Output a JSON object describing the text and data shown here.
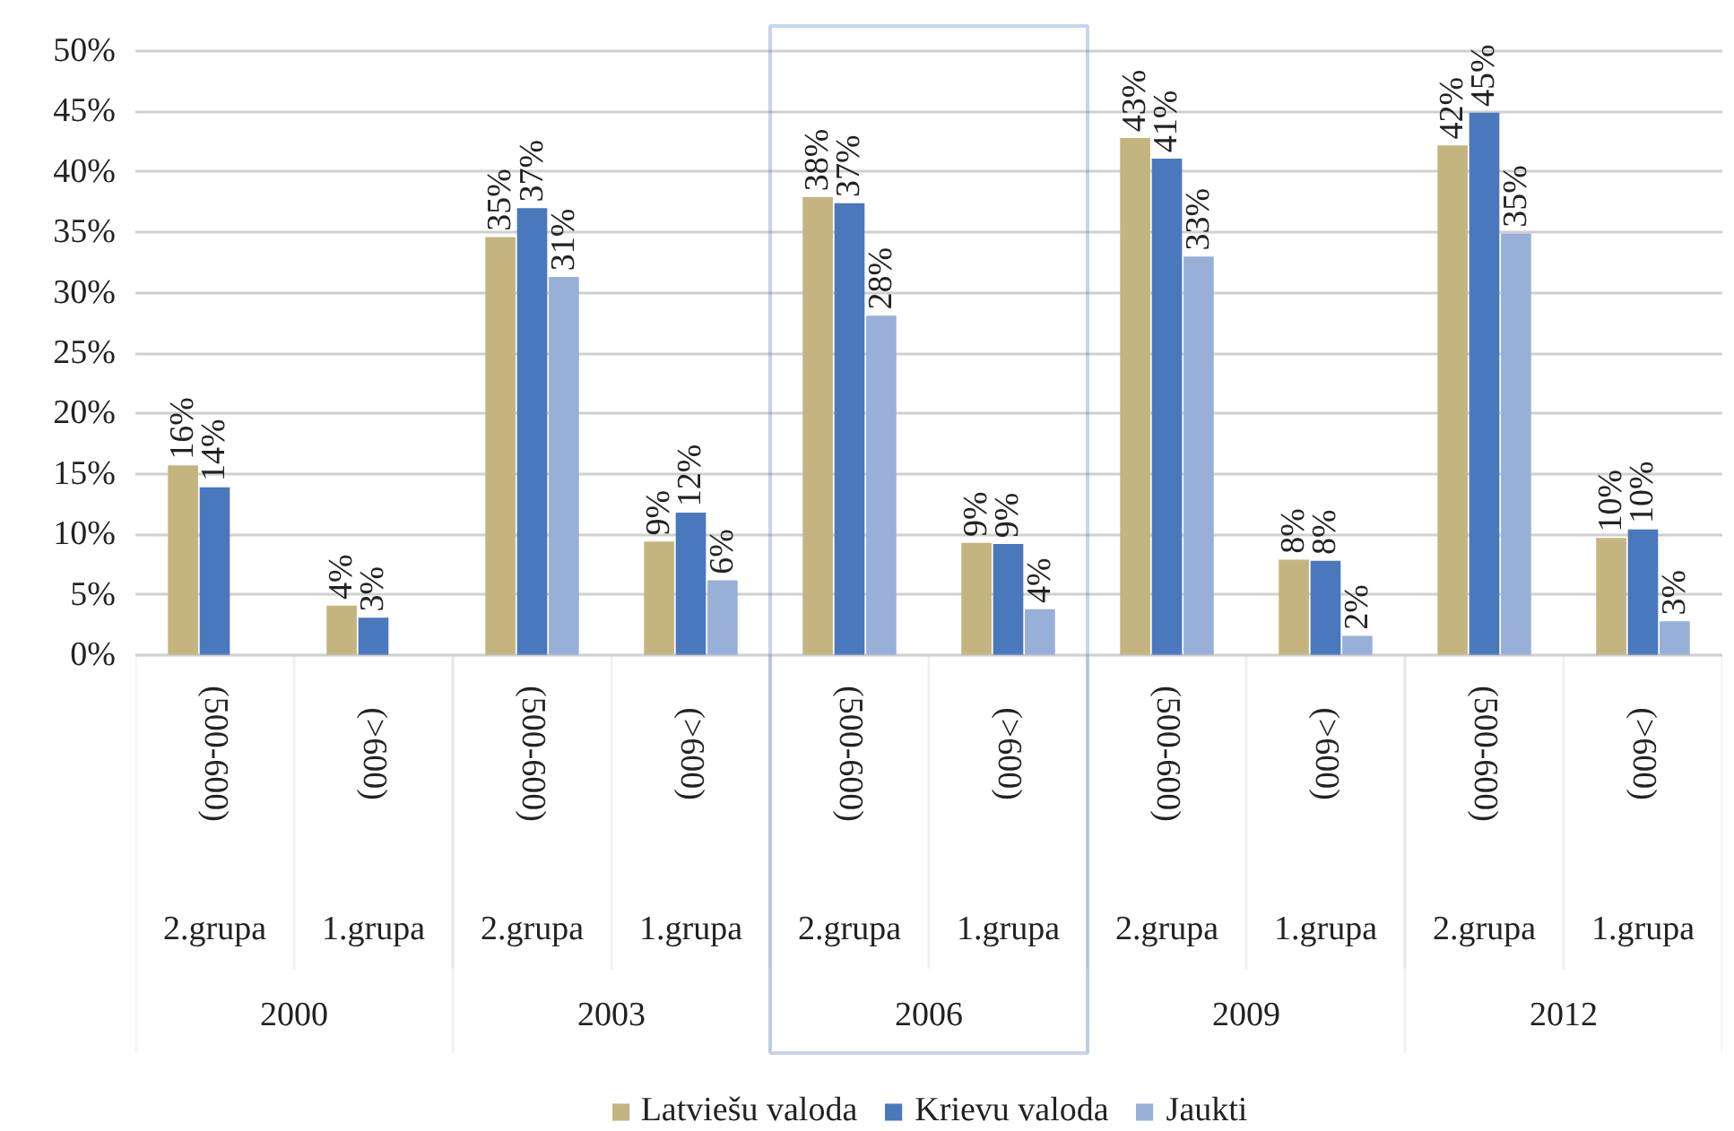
{
  "chart_data": {
    "type": "bar",
    "categories": [
      "(500-600)",
      "(>600)",
      "(500-600)",
      "(>600)",
      "(500-600)",
      "(>600)",
      "(500-600)",
      "(>600)",
      "(500-600)",
      "(>600)"
    ],
    "annotations": [
      "2.grupa",
      "1.grupa",
      "2.grupa",
      "1.grupa",
      "2.grupa",
      "1.grupa",
      "2.grupa",
      "1.grupa",
      "2.grupa",
      "1.grupa",
      "2000",
      "2003",
      "2006",
      "2009",
      "2012"
    ],
    "series": [
      {
        "name": "Latviešu valoda",
        "color": "#c4b47f",
        "values": [
          15.7,
          4.1,
          34.6,
          9.4,
          37.9,
          9.3,
          42.8,
          7.9,
          42.2,
          9.7
        ],
        "value_labels": [
          "16%",
          "4%",
          "35%",
          "9%",
          "38%",
          "9%",
          "43%",
          "8%",
          "42%",
          "10%"
        ]
      },
      {
        "name": "Krievu valoda",
        "color": "#4a78bd",
        "values": [
          13.9,
          3.1,
          37.0,
          11.8,
          37.4,
          9.2,
          41.1,
          7.8,
          44.9,
          10.4
        ],
        "value_labels": [
          "14%",
          "3%",
          "37%",
          "12%",
          "37%",
          "9%",
          "41%",
          "8%",
          "45%",
          "10%"
        ]
      },
      {
        "name": "Jaukti",
        "color": "#98afd8",
        "values": [
          null,
          null,
          31.3,
          6.2,
          28.1,
          3.8,
          33.0,
          1.6,
          34.9,
          2.8
        ],
        "value_labels": [
          null,
          null,
          "31%",
          "6%",
          "28%",
          "4%",
          "33%",
          "2%",
          "35%",
          "3%"
        ]
      }
    ],
    "ylim": [
      0,
      50
    ],
    "yticks": [
      {
        "value": 0,
        "label": "0%"
      },
      {
        "value": 5,
        "label": "5%"
      },
      {
        "value": 10,
        "label": "10%"
      },
      {
        "value": 15,
        "label": "15%"
      },
      {
        "value": 20,
        "label": "20%"
      },
      {
        "value": 25,
        "label": "25%"
      },
      {
        "value": 30,
        "label": "30%"
      },
      {
        "value": 35,
        "label": "35%"
      },
      {
        "value": 40,
        "label": "40%"
      },
      {
        "value": 45,
        "label": "45%"
      },
      {
        "value": 50,
        "label": "50%"
      }
    ],
    "grid": "y",
    "legend": "bottom"
  }
}
